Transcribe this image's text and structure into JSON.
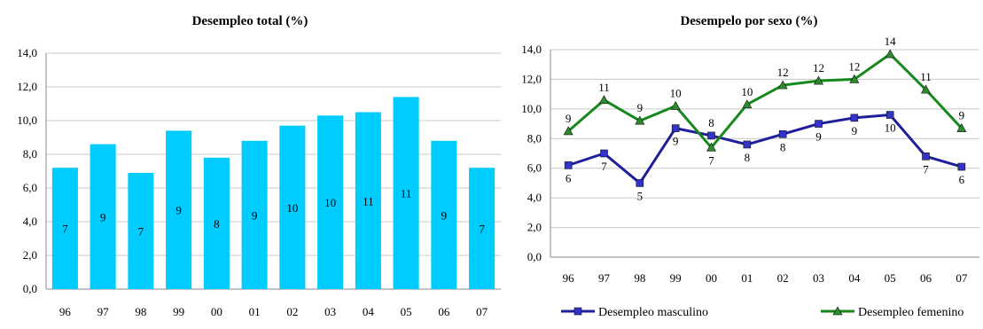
{
  "colors": {
    "bar": "#00CCFF",
    "male_line": "#1F1F9C",
    "male_marker": "#3333CC",
    "female_line": "#17891C",
    "female_marker": "#2E8B2E",
    "grid": "#C8C8C8"
  },
  "chart_data": [
    {
      "type": "bar",
      "title": "Desempleo total (%)",
      "categories": [
        "96",
        "97",
        "98",
        "99",
        "00",
        "01",
        "02",
        "03",
        "04",
        "05",
        "06",
        "07"
      ],
      "values": [
        7.2,
        8.6,
        6.9,
        9.4,
        7.8,
        8.8,
        9.7,
        10.3,
        10.5,
        11.4,
        8.8,
        7.2
      ],
      "data_labels": [
        "7",
        "9",
        "7",
        "9",
        "8",
        "9",
        "10",
        "10",
        "11",
        "11",
        "9",
        "7"
      ],
      "ylim": [
        0,
        14
      ],
      "yticks": [
        "0,0",
        "2,0",
        "4,0",
        "6,0",
        "8,0",
        "10,0",
        "12,0",
        "14,0"
      ],
      "grid": true,
      "xlabel": "",
      "ylabel": ""
    },
    {
      "type": "line",
      "title": "Desempelo por sexo (%)",
      "categories": [
        "96",
        "97",
        "98",
        "99",
        "00",
        "01",
        "02",
        "03",
        "04",
        "05",
        "06",
        "07"
      ],
      "series": [
        {
          "name": "Desempleo masculino",
          "values": [
            6.2,
            7.0,
            5.0,
            8.7,
            8.2,
            7.6,
            8.3,
            9.0,
            9.4,
            9.6,
            6.8,
            6.1
          ],
          "data_labels": [
            "6",
            "7",
            "5",
            "9",
            "8",
            "8",
            "8",
            "9",
            "9",
            "10",
            "7",
            "6"
          ]
        },
        {
          "name": "Desempleo femenino",
          "values": [
            8.5,
            10.6,
            9.2,
            10.2,
            7.4,
            10.3,
            11.6,
            11.9,
            12.0,
            13.7,
            11.3,
            8.7
          ],
          "data_labels": [
            "9",
            "11",
            "9",
            "10",
            "7",
            "10",
            "12",
            "12",
            "12",
            "14",
            "11",
            "9"
          ]
        }
      ],
      "ylim": [
        0,
        14
      ],
      "yticks": [
        "0,0",
        "2,0",
        "4,0",
        "6,0",
        "8,0",
        "10,0",
        "12,0",
        "14,0"
      ],
      "grid": true,
      "legend": "bottom",
      "xlabel": "",
      "ylabel": ""
    }
  ]
}
